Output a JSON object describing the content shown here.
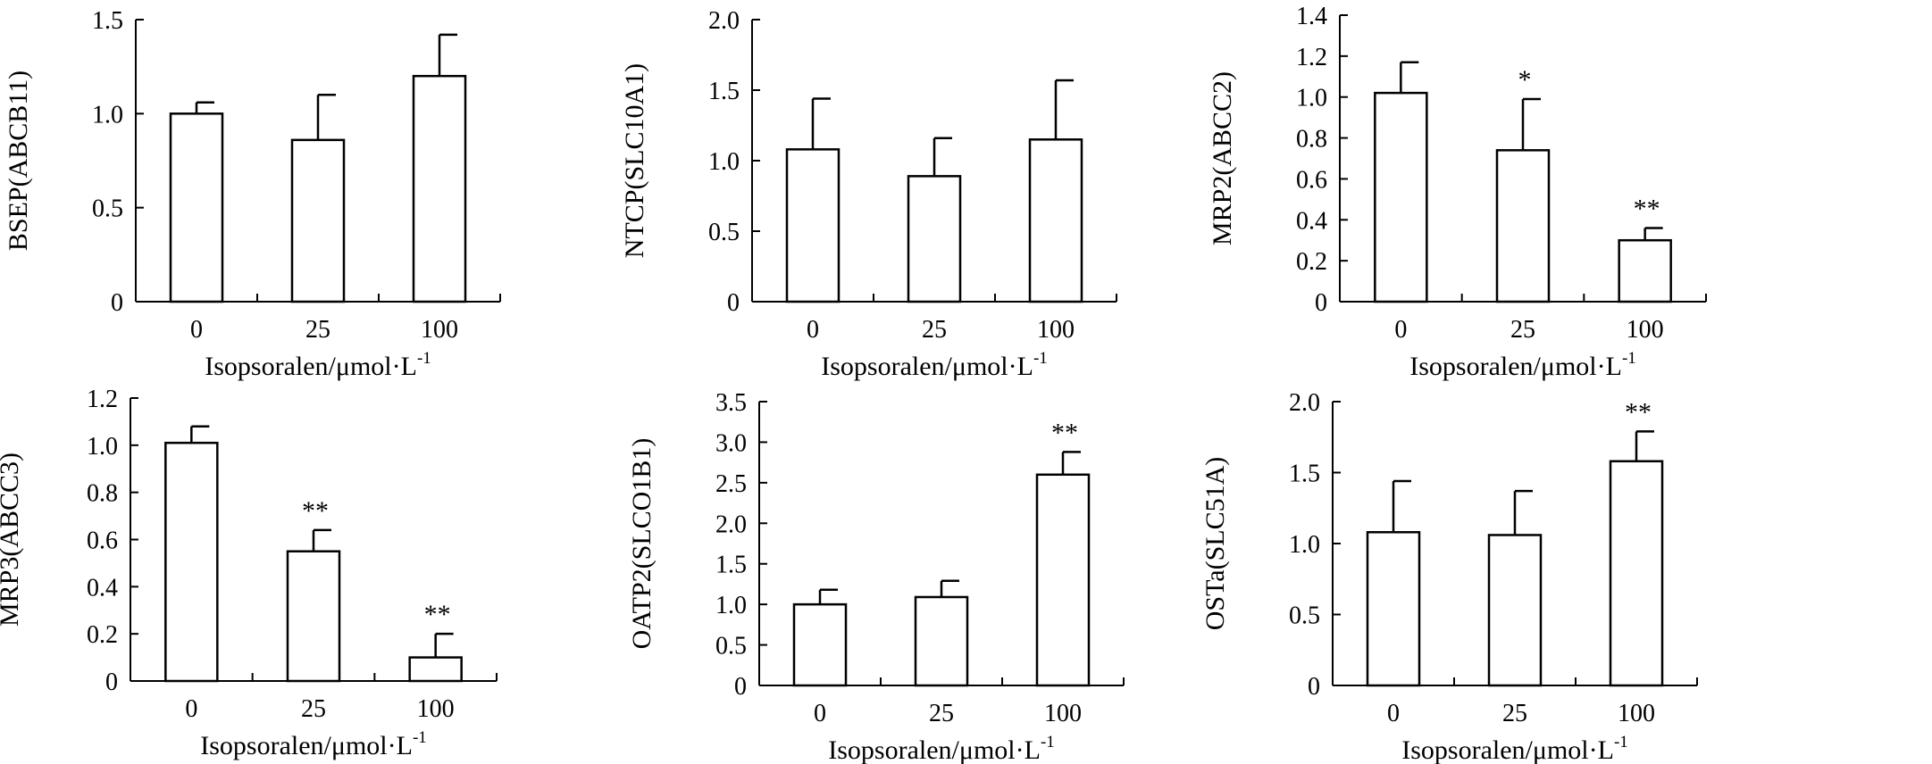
{
  "chart_data": [
    {
      "type": "bar",
      "categories": [
        "0",
        "25",
        "100"
      ],
      "values": [
        1.0,
        0.86,
        1.2
      ],
      "errors": [
        0.06,
        0.24,
        0.22
      ],
      "significance": [
        "",
        "",
        ""
      ],
      "ylabel": "BSEP(ABCB11)",
      "xlabel": "Isopsoralen/μmol·L",
      "xlabel_sup": "-1",
      "ylim": [
        0,
        1.5
      ],
      "yticks": [
        0,
        0.5,
        1.0,
        1.5
      ],
      "ytick_labels": [
        "0",
        "0.5",
        "1.0",
        "1.5"
      ]
    },
    {
      "type": "bar",
      "categories": [
        "0",
        "25",
        "100"
      ],
      "values": [
        1.08,
        0.89,
        1.15
      ],
      "errors": [
        0.36,
        0.27,
        0.42
      ],
      "significance": [
        "",
        "",
        ""
      ],
      "ylabel": "NTCP(SLC10A1)",
      "xlabel": "Isopsoralen/μmol·L",
      "xlabel_sup": "-1",
      "ylim": [
        0,
        2.0
      ],
      "yticks": [
        0,
        0.5,
        1.0,
        1.5,
        2.0
      ],
      "ytick_labels": [
        "0",
        "0.5",
        "1.0",
        "1.5",
        "2.0"
      ]
    },
    {
      "type": "bar",
      "categories": [
        "0",
        "25",
        "100"
      ],
      "values": [
        1.02,
        0.74,
        0.3
      ],
      "errors": [
        0.15,
        0.25,
        0.06
      ],
      "significance": [
        "",
        "*",
        "**"
      ],
      "ylabel": "MRP2(ABCC2)",
      "xlabel": "Isopsoralen/μmol·L",
      "xlabel_sup": "-1",
      "ylim": [
        0,
        1.4
      ],
      "yticks": [
        0,
        0.2,
        0.4,
        0.6,
        0.8,
        1.0,
        1.2,
        1.4
      ],
      "ytick_labels": [
        "0",
        "0.2",
        "0.4",
        "0.6",
        "0.8",
        "1.0",
        "1.2",
        "1.4"
      ]
    },
    {
      "type": "bar",
      "categories": [
        "0",
        "25",
        "100"
      ],
      "values": [
        1.01,
        0.55,
        0.1
      ],
      "errors": [
        0.07,
        0.09,
        0.1
      ],
      "significance": [
        "",
        "**",
        "**"
      ],
      "ylabel": "MRP3(ABCC3)",
      "xlabel": "Isopsoralen/μmol·L",
      "xlabel_sup": "-1",
      "ylim": [
        0,
        1.2
      ],
      "yticks": [
        0,
        0.2,
        0.4,
        0.6,
        0.8,
        1.0,
        1.2
      ],
      "ytick_labels": [
        "0",
        "0.2",
        "0.4",
        "0.6",
        "0.8",
        "1.0",
        "1.2"
      ]
    },
    {
      "type": "bar",
      "categories": [
        "0",
        "25",
        "100"
      ],
      "values": [
        1.0,
        1.09,
        2.6
      ],
      "errors": [
        0.18,
        0.2,
        0.28
      ],
      "significance": [
        "",
        "",
        "**"
      ],
      "ylabel": "OATP2(SLCO1B1)",
      "xlabel": "Isopsoralen/μmol·L",
      "xlabel_sup": "-1",
      "ylim": [
        0,
        3.5
      ],
      "yticks": [
        0,
        0.5,
        1.0,
        1.5,
        2.0,
        2.5,
        3.0,
        3.5
      ],
      "ytick_labels": [
        "0",
        "0.5",
        "1.0",
        "1.5",
        "2.0",
        "2.5",
        "3.0",
        "3.5"
      ]
    },
    {
      "type": "bar",
      "categories": [
        "0",
        "25",
        "100"
      ],
      "values": [
        1.08,
        1.06,
        1.58
      ],
      "errors": [
        0.36,
        0.31,
        0.21
      ],
      "significance": [
        "",
        "",
        "**"
      ],
      "ylabel": "OSTa(SLC51A)",
      "xlabel": "Isopsoralen/μmol·L",
      "xlabel_sup": "-1",
      "ylim": [
        0,
        2.0
      ],
      "yticks": [
        0,
        0.5,
        1.0,
        1.5,
        2.0
      ],
      "ytick_labels": [
        "0",
        "0.5",
        "1.0",
        "1.5",
        "2.0"
      ]
    }
  ]
}
